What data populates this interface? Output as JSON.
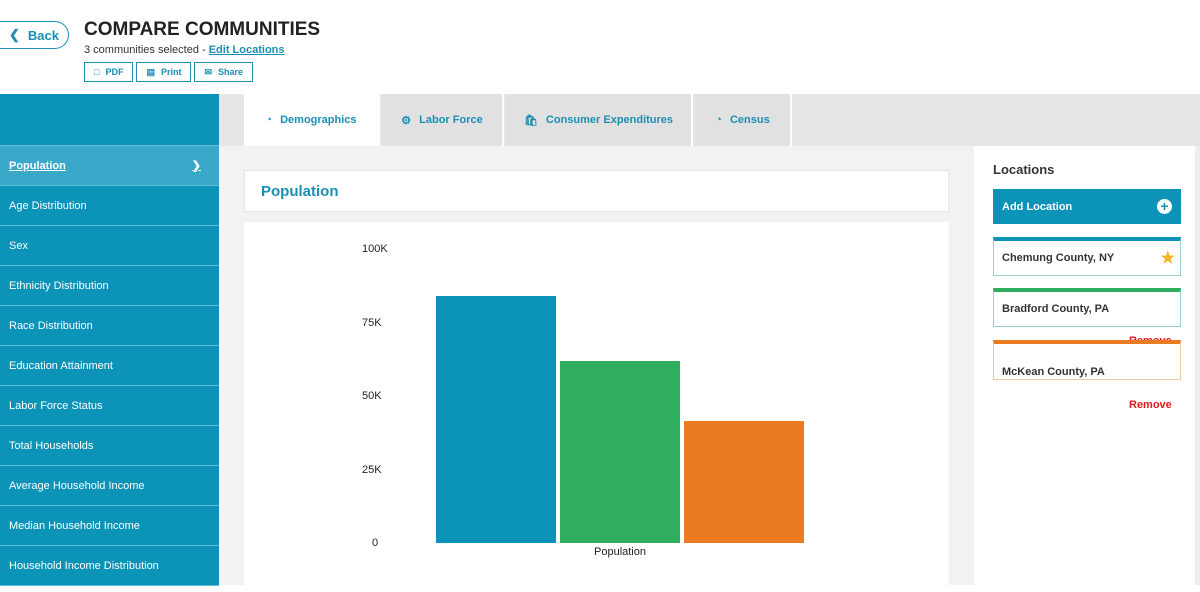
{
  "header": {
    "back": "Back",
    "title": "COMPARE COMMUNITIES",
    "selected": "3 communities selected - ",
    "edit": "Edit Locations",
    "pdf": "PDF",
    "print": "Print",
    "share": "Share"
  },
  "sidebar": [
    "Population",
    "Age Distribution",
    "Sex",
    "Ethnicity Distribution",
    "Race Distribution",
    "Education Attainment",
    "Labor Force Status",
    "Total Households",
    "Average Household Income",
    "Median Household Income",
    "Household Income Distribution"
  ],
  "tabs": [
    "Demographics",
    "Labor Force",
    "Consumer Expenditures",
    "Census"
  ],
  "section_title": "Population",
  "locations": {
    "title": "Locations",
    "add": "Add Location",
    "items": [
      {
        "name": "Chemung County, NY",
        "color": "#0b93b8"
      },
      {
        "name": "Bradford County, PA",
        "color": "#2fae5e"
      },
      {
        "name": "McKean County, PA",
        "color": "#ea7b22"
      }
    ],
    "remove": "Remove"
  },
  "chart_data": {
    "type": "bar",
    "categories": [
      "Population"
    ],
    "xlabel": "Population",
    "ylim": [
      0,
      100000
    ],
    "yticks": [
      "0",
      "25K",
      "50K",
      "75K",
      "100K"
    ],
    "series": [
      {
        "name": "Chemung County, NY",
        "values": [
          84000
        ],
        "color": "#0b93b8"
      },
      {
        "name": "Bradford County, PA",
        "values": [
          62000
        ],
        "color": "#2fae5e"
      },
      {
        "name": "McKean County, PA",
        "values": [
          41500
        ],
        "color": "#ea7b22"
      }
    ]
  }
}
